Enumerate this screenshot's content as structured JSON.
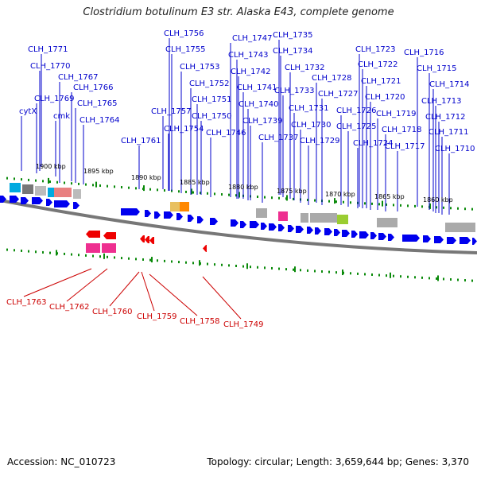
{
  "title": "Clostridium botulinum E3 str. Alaska E43, complete genome",
  "footer": {
    "accession": "Accession: NC_010723",
    "summary": "Topology: circular; Length: 3,659,644 bp; Genes: 3,370"
  },
  "colors": {
    "forward_label": "#0000cc",
    "reverse_label": "#cc0000",
    "forward_gene": "#0000ee",
    "reverse_gene": "#ee0000",
    "tick": "#0a8a0a",
    "backbone": "#777777"
  },
  "ticks": [
    "1900 kbp",
    "1895 kbp",
    "1890 kbp",
    "1885 kbp",
    "1880 kbp",
    "1875 kbp",
    "1870 kbp",
    "1865 kbp",
    "1860 kbp"
  ],
  "forward_labels": [
    "cytX",
    "cmk",
    "CLH_1771",
    "CLH_1770",
    "CLH_1769",
    "CLH_1767",
    "CLH_1766",
    "CLH_1765",
    "CLH_1764",
    "CLH_1761",
    "CLH_1757",
    "CLH_1756",
    "CLH_1755",
    "CLH_1754",
    "CLH_1753",
    "CLH_1752",
    "CLH_1751",
    "CLH_1750",
    "CLH_1747",
    "CLH_1746",
    "CLH_1743",
    "CLH_1742",
    "CLH_1741",
    "CLH_1740",
    "CLH_1739",
    "CLH_1737",
    "CLH_1735",
    "CLH_1734",
    "CLH_1733",
    "CLH_1732",
    "CLH_1731",
    "CLH_1730",
    "CLH_1729",
    "CLH_1728",
    "CLH_1727",
    "CLH_1726",
    "CLH_1725",
    "CLH_1724",
    "CLH_1723",
    "CLH_1722",
    "CLH_1721",
    "CLH_1720",
    "CLH_1719",
    "CLH_1718",
    "CLH_1717",
    "CLH_1716",
    "CLH_1715",
    "CLH_1714",
    "CLH_1713",
    "CLH_1712",
    "CLH_1711",
    "CLH_1710"
  ],
  "reverse_labels": [
    "CLH_1763",
    "CLH_1762",
    "CLH_1760",
    "CLH_1759",
    "CLH_1758",
    "CLH_1749"
  ]
}
